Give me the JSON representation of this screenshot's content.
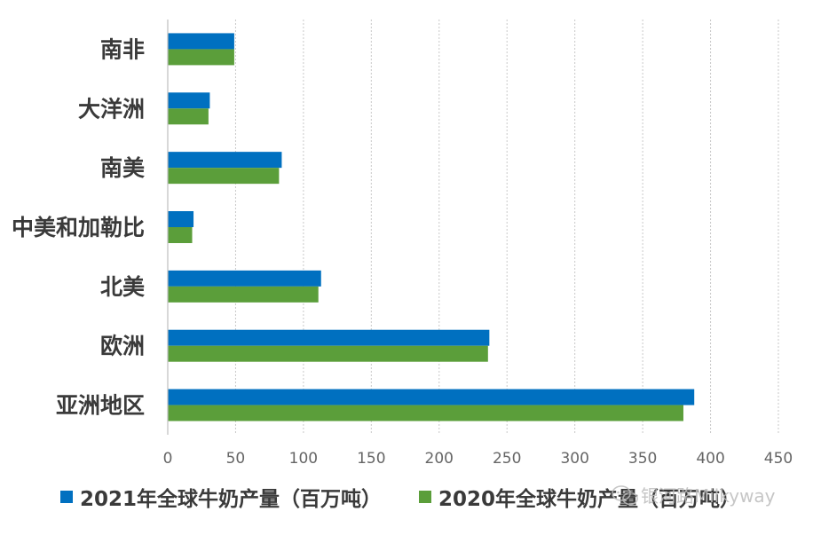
{
  "chart_data": {
    "type": "bar",
    "orientation": "horizontal",
    "categories": [
      "南非",
      "大洋洲",
      "南美",
      "中美和加勒比",
      "北美",
      "欧洲",
      "亚洲地区"
    ],
    "series": [
      {
        "name": "2021年全球牛奶产量（百万吨）",
        "color": "#0070c0",
        "values": [
          49,
          31,
          84,
          19,
          113,
          237,
          388
        ]
      },
      {
        "name": "2020年全球牛奶产量（百万吨）",
        "color": "#5b9e3a",
        "values": [
          49,
          30,
          82,
          18,
          111,
          236,
          380
        ]
      }
    ],
    "xlim": [
      0,
      450
    ],
    "xticks": [
      0,
      50,
      100,
      150,
      200,
      250,
      300,
      350,
      400,
      450
    ],
    "grid": "vertical-dashed",
    "legend": "bottom",
    "title": "",
    "xlabel": "",
    "ylabel": ""
  },
  "watermark": {
    "text": "银河路Milkyway",
    "icon": "wechat-icon"
  }
}
